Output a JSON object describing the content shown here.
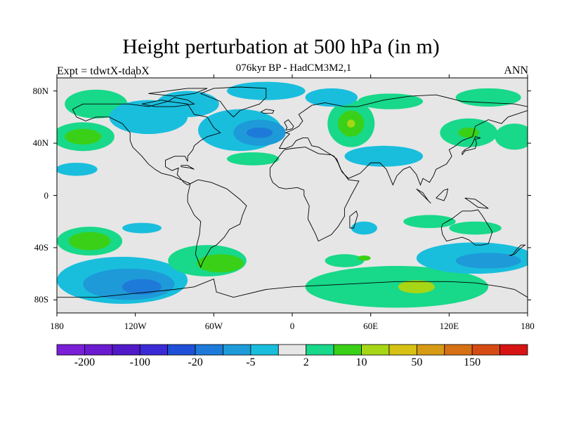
{
  "title": "Height perturbation at 500 hPa (in m)",
  "subtitle": "076kyr BP - HadCM3M2,1",
  "experiment": "Expt = tdwtX-tdabX",
  "season": "ANN",
  "map": {
    "projection": "cylindrical equidistant",
    "lon_range": [
      -180,
      180
    ],
    "lat_range": [
      -90,
      90
    ],
    "background_color": "#e6e6e6",
    "x_ticks": [
      {
        "lon": -180,
        "label": "180"
      },
      {
        "lon": -120,
        "label": "120W"
      },
      {
        "lon": -60,
        "label": "60W"
      },
      {
        "lon": 0,
        "label": "0"
      },
      {
        "lon": 60,
        "label": "60E"
      },
      {
        "lon": 120,
        "label": "120E"
      },
      {
        "lon": 180,
        "label": "180"
      }
    ],
    "y_ticks": [
      {
        "lat": 80,
        "label": "80N"
      },
      {
        "lat": 40,
        "label": "40N"
      },
      {
        "lat": 0,
        "label": "0"
      },
      {
        "lat": -40,
        "label": "40S"
      },
      {
        "lat": -80,
        "label": "80S"
      }
    ]
  },
  "colorbar": {
    "colors": [
      "#7a1fd6",
      "#6a1ad0",
      "#5219c8",
      "#3a2ad6",
      "#1f4fd8",
      "#1e7ad8",
      "#1e9ad8",
      "#19bedd",
      "#e6e6e6",
      "#18d88a",
      "#3ad018",
      "#a6d616",
      "#d6c114",
      "#d69a14",
      "#d67014",
      "#d64a14",
      "#d61414"
    ],
    "labels": [
      {
        "index": 1,
        "text": "-200"
      },
      {
        "index": 3,
        "text": "-100"
      },
      {
        "index": 5,
        "text": "-20"
      },
      {
        "index": 7,
        "text": "-5"
      },
      {
        "index": 9,
        "text": "2"
      },
      {
        "index": 11,
        "text": "10"
      },
      {
        "index": 13,
        "text": "50"
      },
      {
        "index": 15,
        "text": "150"
      }
    ]
  },
  "field_anomalies": [
    {
      "lon": -160,
      "lat": 45,
      "rx": 24,
      "ry": 11,
      "level": 1
    },
    {
      "lon": -160,
      "lat": 45,
      "rx": 14,
      "ry": 6,
      "level": 2
    },
    {
      "lon": -150,
      "lat": 70,
      "rx": 24,
      "ry": 11,
      "level": 1
    },
    {
      "lon": -165,
      "lat": 20,
      "rx": 16,
      "ry": 5,
      "level": -1
    },
    {
      "lon": -110,
      "lat": 60,
      "rx": 30,
      "ry": 13,
      "level": -1
    },
    {
      "lon": -80,
      "lat": 70,
      "rx": 24,
      "ry": 10,
      "level": -1
    },
    {
      "lon": -40,
      "lat": 50,
      "rx": 32,
      "ry": 16,
      "level": -1
    },
    {
      "lon": -25,
      "lat": 48,
      "rx": 20,
      "ry": 10,
      "level": -2
    },
    {
      "lon": -25,
      "lat": 48,
      "rx": 10,
      "ry": 4,
      "level": -3
    },
    {
      "lon": -20,
      "lat": 80,
      "rx": 30,
      "ry": 7,
      "level": -1
    },
    {
      "lon": -30,
      "lat": 28,
      "rx": 20,
      "ry": 5,
      "level": 1
    },
    {
      "lon": 45,
      "lat": 55,
      "rx": 18,
      "ry": 18,
      "level": 1
    },
    {
      "lon": 45,
      "lat": 55,
      "rx": 10,
      "ry": 10,
      "level": 2
    },
    {
      "lon": 45,
      "lat": 55,
      "rx": 3,
      "ry": 3,
      "level": 3
    },
    {
      "lon": 70,
      "lat": 30,
      "rx": 30,
      "ry": 8,
      "level": -1
    },
    {
      "lon": 30,
      "lat": 75,
      "rx": 20,
      "ry": 7,
      "level": -1
    },
    {
      "lon": 75,
      "lat": 72,
      "rx": 25,
      "ry": 6,
      "level": 1
    },
    {
      "lon": 135,
      "lat": 48,
      "rx": 22,
      "ry": 11,
      "level": 1
    },
    {
      "lon": 135,
      "lat": 48,
      "rx": 8,
      "ry": 4,
      "level": 2
    },
    {
      "lon": 170,
      "lat": 45,
      "rx": 15,
      "ry": 10,
      "level": 1
    },
    {
      "lon": 150,
      "lat": 75,
      "rx": 25,
      "ry": 7,
      "level": 1
    },
    {
      "lon": 55,
      "lat": -25,
      "rx": 10,
      "ry": 5,
      "level": -1
    },
    {
      "lon": 105,
      "lat": -20,
      "rx": 20,
      "ry": 5,
      "level": 1
    },
    {
      "lon": 140,
      "lat": -25,
      "rx": 20,
      "ry": 5,
      "level": 1
    },
    {
      "lon": -155,
      "lat": -35,
      "rx": 25,
      "ry": 11,
      "level": 1
    },
    {
      "lon": -155,
      "lat": -35,
      "rx": 16,
      "ry": 7,
      "level": 2
    },
    {
      "lon": -115,
      "lat": -25,
      "rx": 15,
      "ry": 4,
      "level": -1
    },
    {
      "lon": -130,
      "lat": -65,
      "rx": 50,
      "ry": 18,
      "level": -1
    },
    {
      "lon": -125,
      "lat": -68,
      "rx": 35,
      "ry": 12,
      "level": -2
    },
    {
      "lon": -115,
      "lat": -70,
      "rx": 15,
      "ry": 6,
      "level": -3
    },
    {
      "lon": -65,
      "lat": -50,
      "rx": 30,
      "ry": 12,
      "level": 1
    },
    {
      "lon": -55,
      "lat": -52,
      "rx": 18,
      "ry": 7,
      "level": 2
    },
    {
      "lon": 80,
      "lat": -70,
      "rx": 70,
      "ry": 16,
      "level": 1
    },
    {
      "lon": 95,
      "lat": -70,
      "rx": 14,
      "ry": 5,
      "level": 3
    },
    {
      "lon": 140,
      "lat": -48,
      "rx": 45,
      "ry": 12,
      "level": -1
    },
    {
      "lon": 150,
      "lat": -50,
      "rx": 25,
      "ry": 6,
      "level": -2
    },
    {
      "lon": 40,
      "lat": -50,
      "rx": 15,
      "ry": 5,
      "level": 1
    },
    {
      "lon": 55,
      "lat": -48,
      "rx": 5,
      "ry": 2,
      "level": 2
    }
  ],
  "coastlines": [
    [
      [
        -168,
        66
      ],
      [
        -160,
        70
      ],
      [
        -140,
        70
      ],
      [
        -125,
        70
      ],
      [
        -110,
        68
      ],
      [
        -95,
        72
      ],
      [
        -80,
        70
      ],
      [
        -75,
        62
      ],
      [
        -65,
        60
      ],
      [
        -60,
        52
      ],
      [
        -55,
        48
      ],
      [
        -65,
        45
      ],
      [
        -70,
        42
      ],
      [
        -75,
        38
      ],
      [
        -76,
        35
      ],
      [
        -80,
        30
      ],
      [
        -80,
        26
      ],
      [
        -82,
        30
      ],
      [
        -85,
        30
      ],
      [
        -90,
        30
      ],
      [
        -97,
        27
      ],
      [
        -97,
        22
      ],
      [
        -92,
        19
      ],
      [
        -87,
        21
      ],
      [
        -88,
        16
      ],
      [
        -83,
        10
      ],
      [
        -80,
        8
      ],
      [
        -78,
        9
      ],
      [
        -85,
        12
      ],
      [
        -92,
        15
      ],
      [
        -100,
        17
      ],
      [
        -105,
        20
      ],
      [
        -110,
        24
      ],
      [
        -115,
        30
      ],
      [
        -118,
        33
      ],
      [
        -122,
        37
      ],
      [
        -124,
        42
      ],
      [
        -124,
        48
      ],
      [
        -130,
        55
      ],
      [
        -140,
        60
      ],
      [
        -150,
        60
      ],
      [
        -158,
        57
      ],
      [
        -165,
        60
      ],
      [
        -168,
        66
      ]
    ],
    [
      [
        -78,
        9
      ],
      [
        -72,
        12
      ],
      [
        -62,
        10
      ],
      [
        -50,
        5
      ],
      [
        -40,
        -3
      ],
      [
        -35,
        -8
      ],
      [
        -38,
        -15
      ],
      [
        -40,
        -22
      ],
      [
        -48,
        -26
      ],
      [
        -52,
        -32
      ],
      [
        -58,
        -38
      ],
      [
        -62,
        -40
      ],
      [
        -65,
        -45
      ],
      [
        -68,
        -50
      ],
      [
        -70,
        -55
      ],
      [
        -72,
        -50
      ],
      [
        -74,
        -45
      ],
      [
        -73,
        -38
      ],
      [
        -71,
        -30
      ],
      [
        -70,
        -20
      ],
      [
        -75,
        -15
      ],
      [
        -80,
        -5
      ],
      [
        -80,
        0
      ],
      [
        -78,
        9
      ]
    ],
    [
      [
        -45,
        60
      ],
      [
        -40,
        65
      ],
      [
        -25,
        70
      ],
      [
        -20,
        75
      ],
      [
        -20,
        82
      ],
      [
        -40,
        83
      ],
      [
        -60,
        82
      ],
      [
        -70,
        78
      ],
      [
        -55,
        72
      ],
      [
        -50,
        65
      ],
      [
        -45,
        60
      ]
    ],
    [
      [
        -10,
        36
      ],
      [
        -6,
        43
      ],
      [
        -2,
        47
      ],
      [
        -5,
        48
      ],
      [
        0,
        50
      ],
      [
        5,
        53
      ],
      [
        8,
        57
      ],
      [
        5,
        62
      ],
      [
        15,
        69
      ],
      [
        25,
        71
      ],
      [
        40,
        68
      ],
      [
        50,
        68
      ],
      [
        70,
        73
      ],
      [
        90,
        76
      ],
      [
        110,
        77
      ],
      [
        130,
        72
      ],
      [
        150,
        71
      ],
      [
        170,
        70
      ],
      [
        180,
        68
      ],
      [
        180,
        65
      ],
      [
        165,
        60
      ],
      [
        160,
        55
      ],
      [
        150,
        58
      ],
      [
        140,
        53
      ],
      [
        138,
        45
      ],
      [
        130,
        42
      ],
      [
        125,
        38
      ],
      [
        120,
        35
      ],
      [
        122,
        30
      ],
      [
        118,
        24
      ],
      [
        110,
        20
      ],
      [
        108,
        15
      ],
      [
        105,
        10
      ],
      [
        100,
        13
      ],
      [
        98,
        8
      ],
      [
        95,
        16
      ],
      [
        90,
        22
      ],
      [
        85,
        20
      ],
      [
        80,
        15
      ],
      [
        77,
        8
      ],
      [
        72,
        20
      ],
      [
        67,
        25
      ],
      [
        60,
        25
      ],
      [
        57,
        22
      ],
      [
        52,
        17
      ],
      [
        43,
        13
      ],
      [
        38,
        18
      ],
      [
        34,
        28
      ],
      [
        30,
        31
      ],
      [
        25,
        34
      ],
      [
        20,
        37
      ],
      [
        15,
        38
      ],
      [
        12,
        44
      ],
      [
        8,
        44
      ],
      [
        3,
        42
      ],
      [
        0,
        38
      ],
      [
        -5,
        36
      ],
      [
        -10,
        36
      ]
    ],
    [
      [
        -17,
        15
      ],
      [
        -17,
        21
      ],
      [
        -10,
        30
      ],
      [
        -6,
        35
      ],
      [
        0,
        36
      ],
      [
        10,
        37
      ],
      [
        20,
        32
      ],
      [
        30,
        31
      ],
      [
        32,
        30
      ],
      [
        35,
        25
      ],
      [
        37,
        20
      ],
      [
        43,
        12
      ],
      [
        51,
        11
      ],
      [
        45,
        0
      ],
      [
        40,
        -10
      ],
      [
        40,
        -16
      ],
      [
        35,
        -24
      ],
      [
        30,
        -30
      ],
      [
        20,
        -35
      ],
      [
        18,
        -30
      ],
      [
        12,
        -18
      ],
      [
        13,
        -8
      ],
      [
        9,
        0
      ],
      [
        9,
        4
      ],
      [
        4,
        6
      ],
      [
        -5,
        5
      ],
      [
        -10,
        6
      ],
      [
        -15,
        10
      ],
      [
        -17,
        15
      ]
    ],
    [
      [
        115,
        -22
      ],
      [
        122,
        -18
      ],
      [
        130,
        -12
      ],
      [
        137,
        -12
      ],
      [
        142,
        -11
      ],
      [
        145,
        -15
      ],
      [
        150,
        -23
      ],
      [
        153,
        -28
      ],
      [
        150,
        -37
      ],
      [
        145,
        -38
      ],
      [
        140,
        -38
      ],
      [
        135,
        -34
      ],
      [
        130,
        -32
      ],
      [
        118,
        -35
      ],
      [
        115,
        -30
      ],
      [
        114,
        -25
      ],
      [
        115,
        -22
      ]
    ],
    [
      [
        -180,
        -78
      ],
      [
        -150,
        -78
      ],
      [
        -120,
        -75
      ],
      [
        -90,
        -72
      ],
      [
        -75,
        -70
      ],
      [
        -60,
        -64
      ],
      [
        -58,
        -74
      ],
      [
        -45,
        -78
      ],
      [
        -20,
        -72
      ],
      [
        0,
        -70
      ],
      [
        20,
        -69
      ],
      [
        40,
        -68
      ],
      [
        60,
        -67
      ],
      [
        80,
        -66
      ],
      [
        100,
        -66
      ],
      [
        120,
        -66
      ],
      [
        140,
        -67
      ],
      [
        160,
        -70
      ],
      [
        170,
        -72
      ],
      [
        180,
        -78
      ]
    ],
    [
      [
        44,
        -25
      ],
      [
        47,
        -25
      ],
      [
        50,
        -15
      ],
      [
        49,
        -12
      ],
      [
        44,
        -16
      ],
      [
        44,
        -25
      ]
    ],
    [
      [
        -5,
        50
      ],
      [
        0,
        51
      ],
      [
        1,
        53
      ],
      [
        -3,
        58
      ],
      [
        -6,
        56
      ],
      [
        -5,
        54
      ],
      [
        -4,
        52
      ],
      [
        -5,
        50
      ]
    ],
    [
      [
        130,
        31
      ],
      [
        132,
        34
      ],
      [
        136,
        35
      ],
      [
        140,
        36
      ],
      [
        141,
        40
      ],
      [
        140,
        43
      ],
      [
        144,
        44
      ],
      [
        140,
        45
      ],
      [
        138,
        40
      ],
      [
        136,
        37
      ],
      [
        132,
        35
      ],
      [
        130,
        33
      ],
      [
        130,
        31
      ]
    ],
    [
      [
        -24,
        64
      ],
      [
        -20,
        66
      ],
      [
        -14,
        65
      ],
      [
        -15,
        63
      ],
      [
        -22,
        63
      ],
      [
        -24,
        64
      ]
    ],
    [
      [
        166,
        -46
      ],
      [
        170,
        -45
      ],
      [
        174,
        -41
      ],
      [
        178,
        -38
      ],
      [
        175,
        -38
      ],
      [
        172,
        -41
      ],
      [
        168,
        -46
      ],
      [
        166,
        -46
      ]
    ],
    [
      [
        95,
        5
      ],
      [
        100,
        0
      ],
      [
        106,
        -6
      ],
      [
        104,
        -4
      ],
      [
        100,
        2
      ],
      [
        95,
        5
      ]
    ],
    [
      [
        110,
        -2
      ],
      [
        116,
        4
      ],
      [
        119,
        5
      ],
      [
        118,
        0
      ],
      [
        116,
        -4
      ],
      [
        110,
        -2
      ]
    ],
    [
      [
        132,
        -2
      ],
      [
        140,
        -3
      ],
      [
        150,
        -10
      ],
      [
        142,
        -9
      ],
      [
        135,
        -4
      ],
      [
        132,
        -2
      ]
    ],
    [
      [
        -85,
        23
      ],
      [
        -80,
        23
      ],
      [
        -75,
        20
      ],
      [
        -78,
        21
      ],
      [
        -85,
        22
      ],
      [
        -85,
        23
      ]
    ],
    [
      [
        -115,
        70
      ],
      [
        -100,
        73
      ],
      [
        -95,
        72
      ],
      [
        -90,
        75
      ],
      [
        -80,
        73
      ],
      [
        -75,
        70
      ],
      [
        -90,
        68
      ],
      [
        -105,
        68
      ],
      [
        -115,
        70
      ]
    ],
    [
      [
        -110,
        78
      ],
      [
        -95,
        80
      ],
      [
        -80,
        82
      ],
      [
        -65,
        82
      ],
      [
        -75,
        78
      ],
      [
        -90,
        76
      ],
      [
        -110,
        78
      ]
    ]
  ]
}
